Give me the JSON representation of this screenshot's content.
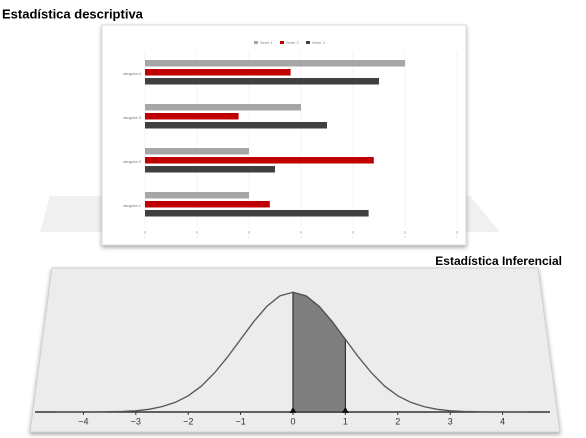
{
  "chart_data": [
    {
      "type": "barh",
      "title": "Estadística descriptiva",
      "categories": [
        "ategoria 1",
        "ategoria 2",
        "ategoria 3",
        "ategoria 4"
      ],
      "series": [
        {
          "name": "Serie 1",
          "color": "#a6a6a6",
          "values": [
            2,
            2,
            3,
            5
          ]
        },
        {
          "name": "Serie 2",
          "color": "#c00000",
          "values": [
            2.4,
            4.4,
            1.8,
            2.8
          ]
        },
        {
          "name": "Serie 3",
          "color": "#404040",
          "values": [
            4.3,
            2.5,
            3.5,
            4.5
          ]
        }
      ],
      "xlim": [
        0,
        6
      ],
      "xticks": [
        0,
        1,
        2,
        3,
        4,
        5,
        6
      ],
      "grid": true,
      "legend": "top"
    },
    {
      "type": "line",
      "title": "Estadística Inferencial",
      "x": [
        -4.5,
        -4.25,
        -4,
        -3.75,
        -3.5,
        -3.25,
        -3,
        -2.75,
        -2.5,
        -2.25,
        -2,
        -1.75,
        -1.5,
        -1.25,
        -1,
        -0.75,
        -0.5,
        -0.25,
        0,
        0.25,
        0.5,
        0.75,
        1,
        1.25,
        1.5,
        1.75,
        2,
        2.25,
        2.5,
        2.75,
        3,
        3.25,
        3.5,
        3.75,
        4,
        4.25,
        4.5
      ],
      "values": [
        0,
        0,
        0,
        0,
        0.001,
        0.002,
        0.004,
        0.009,
        0.018,
        0.032,
        0.054,
        0.086,
        0.13,
        0.183,
        0.242,
        0.301,
        0.352,
        0.387,
        0.399,
        0.387,
        0.352,
        0.301,
        0.242,
        0.183,
        0.13,
        0.086,
        0.054,
        0.032,
        0.018,
        0.009,
        0.004,
        0.002,
        0.001,
        0,
        0,
        0,
        0
      ],
      "color": "#555555",
      "shade": [
        0,
        1
      ],
      "shade_color": "#7f7f7f",
      "xlim": [
        -5,
        5
      ],
      "ylim": [
        0,
        0.42
      ],
      "xticks": [
        {
          "value": -4,
          "label": "−4"
        },
        {
          "value": -3,
          "label": "−3"
        },
        {
          "value": -2,
          "label": "−2"
        },
        {
          "value": -1,
          "label": "−1"
        },
        0,
        1,
        2,
        3,
        4
      ]
    }
  ]
}
